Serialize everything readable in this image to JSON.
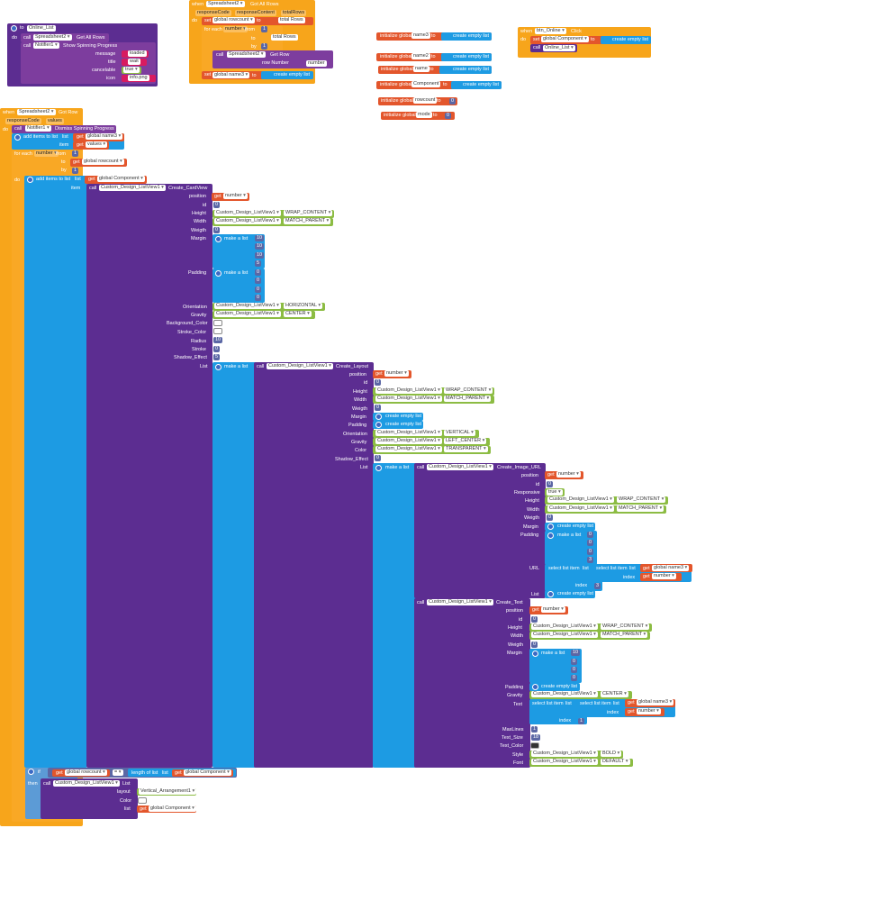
{
  "online_list": {
    "name": "Online_List",
    "do": "do",
    "call1_component": "Spreadsheet2",
    "call1_method": "Get All Rows",
    "call2_component": "Notifier1",
    "call2_method": "Show Spinning Progress",
    "params": [
      {
        "label": "message",
        "value": "loaded"
      },
      {
        "label": "title",
        "value": "wait"
      },
      {
        "label": "cancelable",
        "value": "true"
      },
      {
        "label": "icon",
        "value": "info.png"
      }
    ],
    "to": "to",
    "call": "call"
  },
  "get_all_rows": {
    "when": "when",
    "component": "Spreadsheet2",
    "event": "Got All Rows",
    "params": [
      "responseCode",
      "responseContent",
      "totalRows"
    ],
    "do": "do",
    "set": "set",
    "var": "global rowcount",
    "to": "to",
    "get": "get",
    "get_var": "total Rows",
    "foreach": "for each",
    "number": "number",
    "from": "from",
    "to2": "to",
    "by": "by",
    "from_val": "1",
    "by_val": "1",
    "get_total": "total Rows",
    "call": "call",
    "getrow_component": "Spreadsheet2",
    "getrow_method": "Get Row",
    "row_number": "row Number",
    "set2_var": "global name3",
    "create_empty": "create empty list"
  },
  "globals": [
    {
      "init": "initialize global",
      "name": "name3",
      "to": "to",
      "value": "create empty list"
    },
    {
      "init": "initialize global",
      "name": "name2",
      "to": "to",
      "value": "create empty list"
    },
    {
      "init": "initialize global",
      "name": "name",
      "to": "to",
      "value": "create empty list"
    },
    {
      "init": "initialize global",
      "name": "Component",
      "to": "to",
      "value": "create empty list"
    },
    {
      "init": "initialize global",
      "name": "rowcount",
      "to": "to",
      "value": "0"
    },
    {
      "init": "initialize global",
      "name": "mode",
      "to": "to",
      "value": "0"
    }
  ],
  "btn_online": {
    "when": "when",
    "component": "btn_Online",
    "event": "Click",
    "do": "do",
    "set": "set",
    "var": "global Component",
    "to": "to",
    "value": "create empty list",
    "call": "call",
    "proc": "Online_List"
  },
  "got_row": {
    "when": "when",
    "component": "Spreadsheet2",
    "event": "Got Row",
    "params": [
      "responseCode",
      "values"
    ],
    "do": "do",
    "call": "call",
    "notifier": "Notifier1",
    "dismiss": "Dismiss Spinning Progress",
    "add_items": "add items to list",
    "list": "list",
    "item": "item",
    "get": "get",
    "name3": "global name3",
    "values": "values",
    "foreach": "for each",
    "number": "number",
    "from": "from",
    "to": "to",
    "by": "by",
    "from_val": "1",
    "by_val": "1",
    "rowcount": "global rowcount",
    "component_var": "global Component",
    "cardview_comp": "Custom_Design_ListView1",
    "cardview_method": "Create_CardView",
    "card_params": [
      {
        "label": "position"
      },
      {
        "label": "id"
      },
      {
        "label": "Height"
      },
      {
        "label": "Width"
      },
      {
        "label": "Weigth"
      },
      {
        "label": "Margin"
      },
      {
        "label": "Padding"
      },
      {
        "label": "Orientation"
      },
      {
        "label": "Gravity"
      },
      {
        "label": "Background_Color"
      },
      {
        "label": "Stroke_Color"
      },
      {
        "label": "Radius"
      },
      {
        "label": "Stroke"
      },
      {
        "label": "Shadow_Effect"
      },
      {
        "label": "List"
      }
    ],
    "make_list": "make a list",
    "create_empty": "create empty list",
    "number_var": "number",
    "zero": "0",
    "margin_vals": [
      "10",
      "10",
      "10",
      "5"
    ],
    "padding_vals": [
      "0",
      "0",
      "0",
      "0"
    ],
    "radius_val": "10",
    "stroke_val": "0",
    "shadow_val": "5",
    "wrap": "WRAP_CONTENT",
    "match": "MATCH_PARENT",
    "horizontal": "HORIZONTAL",
    "center": "CENTER",
    "layout_method": "Create_Layout",
    "layout_params": [
      {
        "label": "position"
      },
      {
        "label": "id"
      },
      {
        "label": "Height"
      },
      {
        "label": "Width"
      },
      {
        "label": "Weigth"
      },
      {
        "label": "Margin"
      },
      {
        "label": "Padding"
      },
      {
        "label": "Orientation"
      },
      {
        "label": "Gravity"
      },
      {
        "label": "Color"
      },
      {
        "label": "Shadow_Effect"
      },
      {
        "label": "List"
      }
    ],
    "vertical": "VERTICAL",
    "left_center": "LEFT_CENTER",
    "transparent": "TRANSPARENT",
    "image_method": "Create_Image_URL",
    "image_params": [
      {
        "label": "position"
      },
      {
        "label": "id"
      },
      {
        "label": "Responsive"
      },
      {
        "label": "Height"
      },
      {
        "label": "Width"
      },
      {
        "label": "Weigth"
      },
      {
        "label": "Margin"
      },
      {
        "label": "Padding"
      }
    ],
    "true": "true",
    "img_padding_vals": [
      "0",
      "0",
      "0",
      "3"
    ],
    "url": "URL",
    "select_item": "select list item",
    "index": "index",
    "index_3": "3",
    "list_label": "List",
    "text_method": "Create_Text",
    "text_params": [
      {
        "label": "position"
      },
      {
        "label": "id"
      },
      {
        "label": "Height"
      },
      {
        "label": "Width"
      },
      {
        "label": "Weigth"
      },
      {
        "label": "Margin"
      }
    ],
    "text_margin_vals": [
      "10",
      "0",
      "0",
      "0"
    ],
    "text_lower": [
      {
        "label": "Padding"
      },
      {
        "label": "Gravity"
      },
      {
        "label": "Text"
      }
    ],
    "index_1": "1",
    "maxlines": "MaxLines",
    "maxlines_val": "1",
    "textsize": "Text_Size",
    "textsize_val": "18",
    "textcolor": "Text_Color",
    "style": "Style",
    "bold": "BOLD",
    "font": "Font",
    "default": "DEFAULT",
    "if_block": {
      "if": "if",
      "eq": "=",
      "length": "length of list",
      "then": "then",
      "list_method": "List",
      "layout": "layout",
      "layout_val": "Vertical_Arrangement1",
      "color": "Color",
      "list": "list"
    }
  }
}
